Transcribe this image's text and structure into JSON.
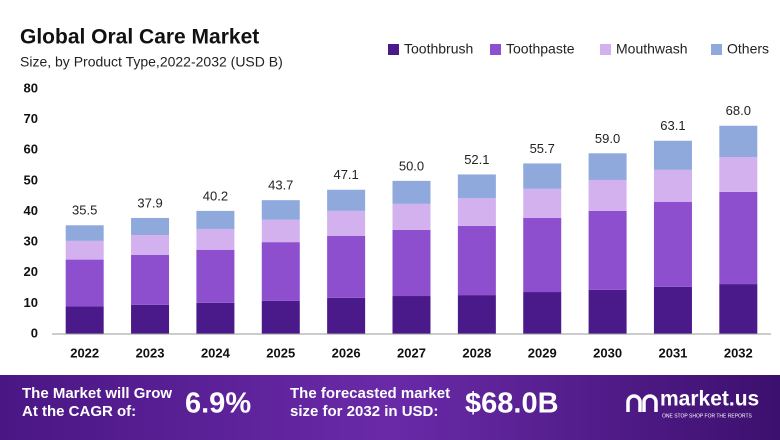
{
  "chart_data": {
    "type": "stacked_bar",
    "title": "Global Oral Care  Market",
    "subtitle": "Size, by Product Type,2022-2032 (USD B)",
    "categories": [
      "2022",
      "2023",
      "2024",
      "2025",
      "2026",
      "2027",
      "2028",
      "2029",
      "2030",
      "2031",
      "2032"
    ],
    "series": [
      {
        "name": "Toothbrush",
        "color": "#4b1a8a",
        "values": [
          9.0,
          9.5,
          10.2,
          10.8,
          11.8,
          12.4,
          12.7,
          13.7,
          14.4,
          15.4,
          16.3
        ]
      },
      {
        "name": "Toothpaste",
        "color": "#8e4fcf",
        "values": [
          15.3,
          16.3,
          17.3,
          19.2,
          20.2,
          21.6,
          22.6,
          24.2,
          25.8,
          27.7,
          30.1
        ]
      },
      {
        "name": "Mouthwash",
        "color": "#d3b0ee",
        "values": [
          6.1,
          6.5,
          6.8,
          7.3,
          8.2,
          8.5,
          9.1,
          9.5,
          10.1,
          10.5,
          11.4
        ]
      },
      {
        "name": "Others",
        "color": "#8fa9dc",
        "values": [
          5.1,
          5.6,
          5.9,
          6.4,
          6.9,
          7.5,
          7.7,
          8.3,
          8.7,
          9.5,
          10.2
        ]
      }
    ],
    "total_labels": [
      "35.5",
      "37.9",
      "40.2",
      "43.7",
      "47.1",
      "50.0",
      "52.1",
      "55.7",
      "59.0",
      "63.1",
      "68.0"
    ],
    "ylim": [
      0,
      80
    ],
    "yticks": [
      0,
      10,
      20,
      30,
      40,
      50,
      60,
      70,
      80
    ],
    "legend": "top-right"
  },
  "footer": {
    "cagr_text": [
      "The Market will Grow",
      "At the CAGR of:"
    ],
    "cagr_value": "6.9%",
    "forecast_text": [
      "The forecasted market",
      "size for 2032 in USD:"
    ],
    "forecast_value": "$68.0B",
    "brand": "market.us",
    "tagline": "ONE STOP SHOP FOR THE REPORTS"
  }
}
